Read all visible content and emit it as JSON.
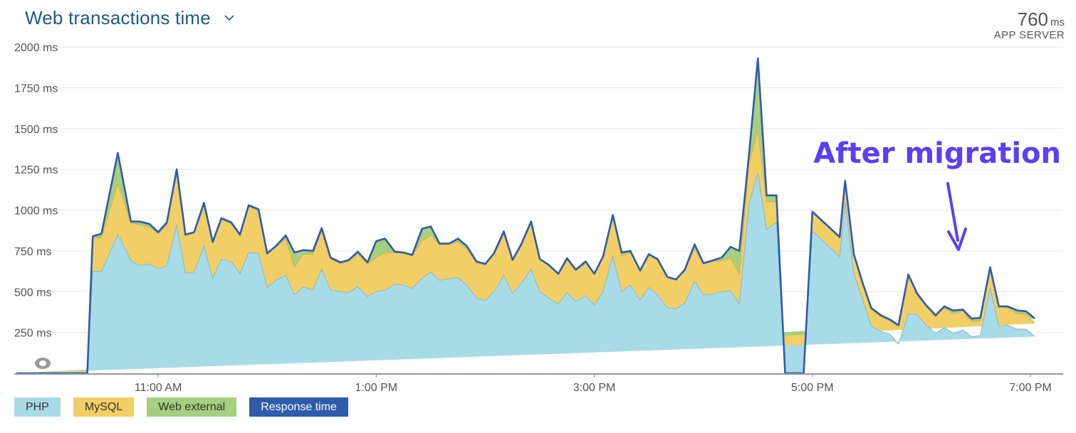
{
  "header": {
    "title": "Web transactions time",
    "summary_value": "760",
    "summary_unit": "ms",
    "summary_label": "APP SERVER"
  },
  "chart_data": {
    "type": "area",
    "title": "Web transactions time",
    "ylim": [
      0,
      2000
    ],
    "y_ticks": [
      "2000 ms",
      "1750 ms",
      "1500 ms",
      "1250 ms",
      "1000 ms",
      "750 ms",
      "500 ms",
      "250 ms"
    ],
    "y_tick_values": [
      2000,
      1750,
      1500,
      1250,
      1000,
      750,
      500,
      250
    ],
    "x_ticks": [
      "11:00 AM",
      "1:00 PM",
      "3:00 PM",
      "5:00 PM",
      "7:00 PM"
    ],
    "x_tick_hours": [
      11,
      13,
      15,
      17,
      19
    ],
    "x_range_hours": [
      9.68,
      19.3
    ],
    "grid": true,
    "legend_position": "bottom-left",
    "stacked": true,
    "x_hours": [
      9.7,
      10.35,
      10.4,
      10.48,
      10.63,
      10.75,
      10.83,
      10.92,
      11.0,
      11.08,
      11.17,
      11.25,
      11.33,
      11.42,
      11.5,
      11.58,
      11.67,
      11.75,
      11.83,
      11.92,
      12.0,
      12.08,
      12.17,
      12.25,
      12.33,
      12.42,
      12.5,
      12.58,
      12.67,
      12.75,
      12.83,
      12.92,
      13.0,
      13.08,
      13.17,
      13.25,
      13.33,
      13.42,
      13.5,
      13.58,
      13.67,
      13.75,
      13.83,
      13.92,
      14.0,
      14.08,
      14.17,
      14.25,
      14.33,
      14.42,
      14.5,
      14.58,
      14.67,
      14.75,
      14.83,
      14.92,
      15.0,
      15.08,
      15.17,
      15.25,
      15.33,
      15.42,
      15.5,
      15.58,
      15.67,
      15.75,
      15.83,
      15.92,
      16.0,
      16.08,
      16.17,
      16.25,
      16.33,
      16.42,
      16.5,
      16.58,
      16.67,
      16.75,
      16.83,
      16.92,
      17.0,
      17.25,
      17.3,
      17.38,
      17.46,
      17.54,
      17.63,
      17.71,
      17.79,
      17.88,
      17.96,
      18.04,
      18.13,
      18.21,
      18.29,
      18.38,
      18.46,
      18.54,
      18.63,
      18.71,
      18.79,
      18.88,
      18.96,
      19.04,
      19.13,
      19.21,
      19.3
    ],
    "series": [
      {
        "name": "PHP",
        "color": "#a8dbe8",
        "values": [
          0,
          0,
          625,
          625,
          850,
          690,
          660,
          670,
          640,
          660,
          910,
          615,
          620,
          780,
          580,
          700,
          685,
          610,
          740,
          735,
          525,
          570,
          600,
          480,
          530,
          510,
          640,
          510,
          500,
          495,
          530,
          470,
          500,
          510,
          545,
          540,
          520,
          580,
          620,
          570,
          580,
          585,
          540,
          460,
          445,
          500,
          600,
          490,
          550,
          640,
          500,
          460,
          425,
          495,
          440,
          475,
          420,
          500,
          720,
          500,
          540,
          450,
          525,
          480,
          400,
          395,
          430,
          565,
          480,
          485,
          500,
          505,
          425,
          1040,
          1230,
          880,
          925,
          0,
          0,
          0,
          870,
          715,
          1050,
          610,
          450,
          290,
          255,
          240,
          180,
          365,
          360,
          295,
          245,
          280,
          245,
          265,
          225,
          230,
          520,
          290,
          295,
          270,
          270,
          225
        ],
        "labels_shown": false
      },
      {
        "name": "MySQL",
        "values": [
          0,
          0,
          200,
          205,
          310,
          230,
          250,
          225,
          215,
          245,
          320,
          225,
          240,
          240,
          220,
          240,
          230,
          230,
          280,
          260,
          205,
          205,
          220,
          170,
          200,
          220,
          230,
          190,
          170,
          190,
          200,
          200,
          210,
          225,
          195,
          195,
          200,
          230,
          225,
          220,
          210,
          220,
          220,
          215,
          220,
          230,
          250,
          200,
          240,
          290,
          200,
          200,
          180,
          200,
          185,
          200,
          190,
          205,
          240,
          220,
          200,
          170,
          200,
          210,
          185,
          175,
          200,
          200,
          190,
          200,
          190,
          200,
          180,
          250,
          250,
          170,
          125,
          0,
          0,
          0,
          120,
          120,
          120,
          120,
          100,
          100,
          90,
          80,
          100,
          230,
          120,
          115,
          100,
          120,
          120,
          115,
          90,
          90,
          120,
          120,
          105,
          95,
          90,
          80
        ]
      },
      {
        "name": "Web external",
        "values": [
          0,
          0,
          15,
          25,
          190,
          10,
          20,
          20,
          10,
          20,
          20,
          10,
          5,
          25,
          5,
          10,
          10,
          10,
          10,
          10,
          5,
          5,
          25,
          90,
          25,
          20,
          20,
          10,
          10,
          10,
          15,
          10,
          100,
          90,
          5,
          5,
          5,
          75,
          55,
          5,
          5,
          20,
          20,
          10,
          5,
          5,
          20,
          5,
          0,
          0,
          0,
          5,
          5,
          10,
          10,
          10,
          0,
          10,
          10,
          20,
          10,
          10,
          5,
          10,
          5,
          5,
          5,
          25,
          5,
          5,
          20,
          70,
          145,
          60,
          450,
          40,
          40,
          0,
          0,
          0,
          0,
          0,
          10,
          0,
          5,
          10,
          10,
          10,
          15,
          10,
          10,
          10,
          10,
          10,
          20,
          10,
          20,
          20,
          10,
          0,
          10,
          20,
          20,
          30
        ]
      }
    ],
    "response_time": {
      "name": "Response time",
      "color": "#2e5bab"
    },
    "annotation": "After migration"
  },
  "legend": [
    {
      "label": "PHP",
      "color": "#a8dbe8"
    },
    {
      "label": "MySQL",
      "color": "#f2cf66"
    },
    {
      "label": "Web external",
      "color": "#a6cf7f"
    },
    {
      "label": "Response time",
      "color": "#2e5bab"
    }
  ]
}
